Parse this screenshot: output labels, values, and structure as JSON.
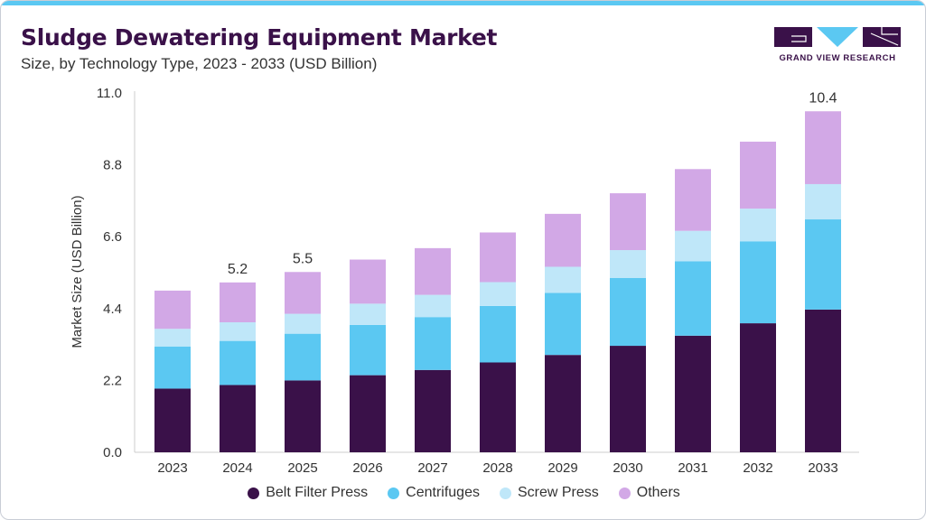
{
  "header": {
    "title": "Sludge Dewatering Equipment Market",
    "subtitle": "Size, by Technology Type, 2023 - 2033 (USD Billion)"
  },
  "logo": {
    "text": "GRAND VIEW RESEARCH",
    "icon": "grand-view-research-logo"
  },
  "colors": {
    "accent_bar": "#5bc8f2",
    "title": "#3a1149"
  },
  "chart_data": {
    "type": "bar",
    "stacked": true,
    "title": "Sludge Dewatering Equipment Market",
    "subtitle": "Size, by Technology Type, 2023 - 2033 (USD Billion)",
    "xlabel": "",
    "ylabel": "Market Size (USD Billion)",
    "ylim": [
      0,
      11
    ],
    "yticks": [
      "0.0",
      "2.2",
      "4.4",
      "6.6",
      "8.8",
      "11.0"
    ],
    "grid": false,
    "legend_position": "bottom",
    "categories": [
      "2023",
      "2024",
      "2025",
      "2026",
      "2027",
      "2028",
      "2029",
      "2030",
      "2031",
      "2032",
      "2033"
    ],
    "series": [
      {
        "name": "Belt Filter Press",
        "color": "#3a1149",
        "values": [
          1.95,
          2.06,
          2.2,
          2.36,
          2.52,
          2.75,
          2.98,
          3.26,
          3.57,
          3.95,
          4.37
        ]
      },
      {
        "name": "Centrifuges",
        "color": "#5bc8f2",
        "values": [
          1.29,
          1.35,
          1.43,
          1.54,
          1.62,
          1.73,
          1.9,
          2.08,
          2.28,
          2.51,
          2.76
        ]
      },
      {
        "name": "Screw Press",
        "color": "#bfe7f9",
        "values": [
          0.54,
          0.57,
          0.61,
          0.65,
          0.68,
          0.73,
          0.8,
          0.85,
          0.93,
          1.0,
          1.08
        ]
      },
      {
        "name": "Others",
        "color": "#d2a8e6",
        "values": [
          1.17,
          1.22,
          1.28,
          1.35,
          1.43,
          1.52,
          1.62,
          1.74,
          1.89,
          2.05,
          2.23
        ]
      }
    ],
    "annotations": [
      {
        "category": "2024",
        "text": "5.2"
      },
      {
        "category": "2025",
        "text": "5.5"
      },
      {
        "category": "2033",
        "text": "10.4"
      }
    ]
  }
}
